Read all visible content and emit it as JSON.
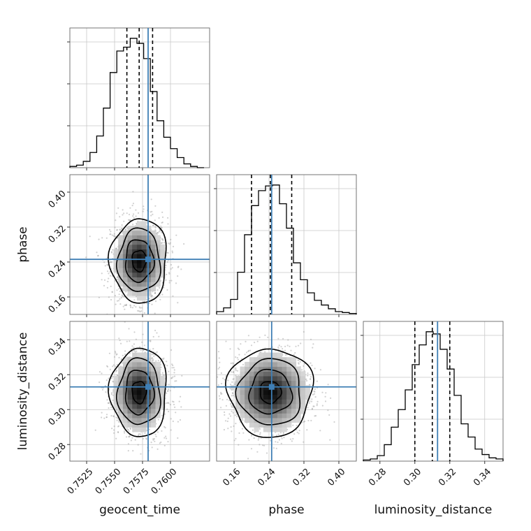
{
  "chart_data": {
    "type": "corner",
    "parameters": [
      "geocent_time",
      "phase",
      "luminosity_distance"
    ],
    "axis_labels": {
      "x": [
        "geocent_time",
        "phase",
        "luminosity_distance"
      ],
      "y": [
        "phase",
        "luminosity_distance"
      ]
    },
    "ranges": {
      "geocent_time": [
        0.751,
        0.7635
      ],
      "phase": [
        0.12,
        0.44
      ],
      "luminosity_distance": [
        0.2705,
        0.3505
      ]
    },
    "ticks": {
      "geocent_time": [
        0.7525,
        0.755,
        0.7575,
        0.76
      ],
      "phase": [
        0.16,
        0.24,
        0.32,
        0.4
      ],
      "luminosity_distance": [
        0.28,
        0.3,
        0.32,
        0.34
      ]
    },
    "tick_labels": {
      "geocent_time": [
        "0.7525",
        "0.7550",
        "0.7575",
        "0.7600"
      ],
      "phase": [
        "0.16",
        "0.24",
        "0.32",
        "0.40"
      ],
      "luminosity_distance": [
        "0.28",
        "0.30",
        "0.32",
        "0.34"
      ]
    },
    "truths": {
      "geocent_time": 0.758,
      "phase": 0.2461,
      "luminosity_distance": 0.313
    },
    "quantiles": {
      "geocent_time": [
        0.7561,
        0.7572,
        0.7584
      ],
      "phase": [
        0.2,
        0.243,
        0.292
      ],
      "luminosity_distance": [
        0.3,
        0.31,
        0.32
      ]
    },
    "histograms": {
      "geocent_time": {
        "edges": [
          0.751,
          0.7516,
          0.7522,
          0.7528,
          0.7534,
          0.754,
          0.7546,
          0.7552,
          0.7558,
          0.7564,
          0.757,
          0.7576,
          0.7582,
          0.7588,
          0.7594,
          0.76,
          0.7606,
          0.7612,
          0.7618,
          0.7624,
          0.763
        ],
        "counts": [
          1,
          2,
          5,
          12,
          25,
          47,
          75,
          92,
          95,
          102,
          98,
          86,
          60,
          37,
          24,
          15,
          8,
          3,
          1,
          0
        ]
      },
      "phase": {
        "edges": [
          0.12,
          0.136,
          0.152,
          0.168,
          0.184,
          0.2,
          0.216,
          0.232,
          0.248,
          0.264,
          0.28,
          0.296,
          0.312,
          0.328,
          0.344,
          0.36,
          0.376,
          0.392,
          0.408,
          0.424,
          0.44
        ],
        "counts": [
          3,
          7,
          16,
          45,
          85,
          116,
          132,
          137,
          138,
          118,
          92,
          55,
          37,
          23,
          15,
          10,
          6,
          3,
          2,
          1
        ]
      },
      "luminosity_distance": {
        "edges": [
          0.2705,
          0.2745,
          0.2785,
          0.2825,
          0.2865,
          0.2905,
          0.2945,
          0.2985,
          0.3025,
          0.3065,
          0.3105,
          0.3145,
          0.3185,
          0.3225,
          0.3265,
          0.3305,
          0.3345,
          0.3385,
          0.3425,
          0.3465,
          0.3505
        ],
        "counts": [
          1,
          2,
          5,
          15,
          31,
          47,
          65,
          88,
          106,
          118,
          116,
          102,
          84,
          60,
          34,
          22,
          11,
          6,
          3,
          2
        ]
      }
    },
    "pairs": [
      {
        "x": "geocent_time",
        "y": "phase",
        "center": [
          0.7572,
          0.243
        ],
        "sigma": [
          0.0011,
          0.042
        ]
      },
      {
        "x": "geocent_time",
        "y": "luminosity_distance",
        "center": [
          0.7572,
          0.31
        ],
        "sigma": [
          0.0011,
          0.011
        ]
      },
      {
        "x": "phase",
        "y": "luminosity_distance",
        "center": [
          0.243,
          0.31
        ],
        "sigma": [
          0.042,
          0.011
        ]
      }
    ],
    "contour_levels_sigma": [
      0.5,
      1.0,
      1.5,
      2.0
    ],
    "colors": {
      "truth": "#3f7fb5",
      "hist": "#000000",
      "grid": "#c8c8c8"
    },
    "grid": true
  }
}
